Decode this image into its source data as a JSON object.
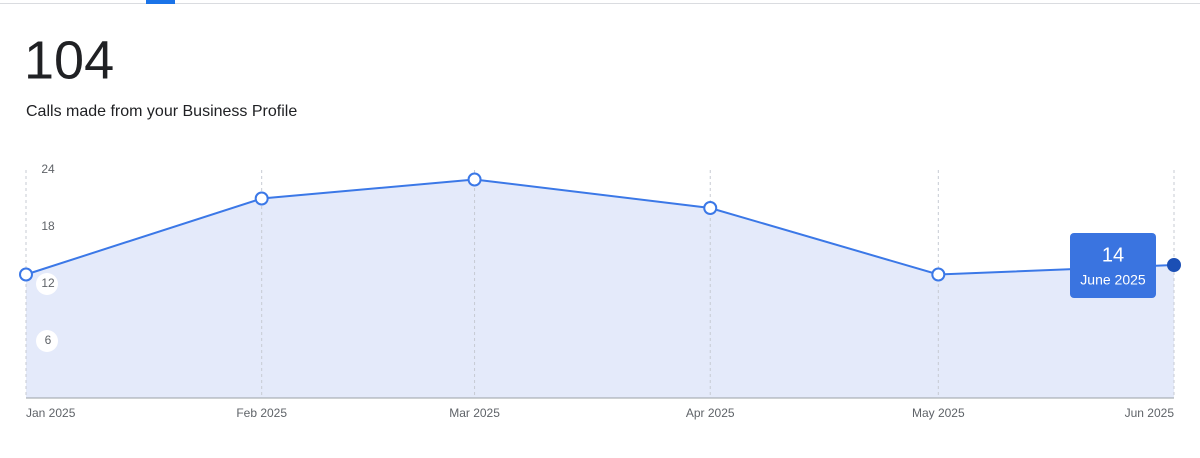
{
  "total": 104,
  "subtitle": "Calls made from your Business Profile",
  "chart_data": {
    "type": "line",
    "categories": [
      "Jan 2025",
      "Feb 2025",
      "Mar 2025",
      "Apr 2025",
      "May 2025",
      "Jun 2025"
    ],
    "values": [
      13,
      21,
      23,
      20,
      13,
      14
    ],
    "color": "#3b78e7",
    "area_color": "#e4eafa",
    "ylim": [
      0,
      24
    ],
    "yticks": [
      6,
      12,
      18,
      24
    ],
    "grid": true,
    "tooltip": {
      "label": "June 2025"
    }
  }
}
